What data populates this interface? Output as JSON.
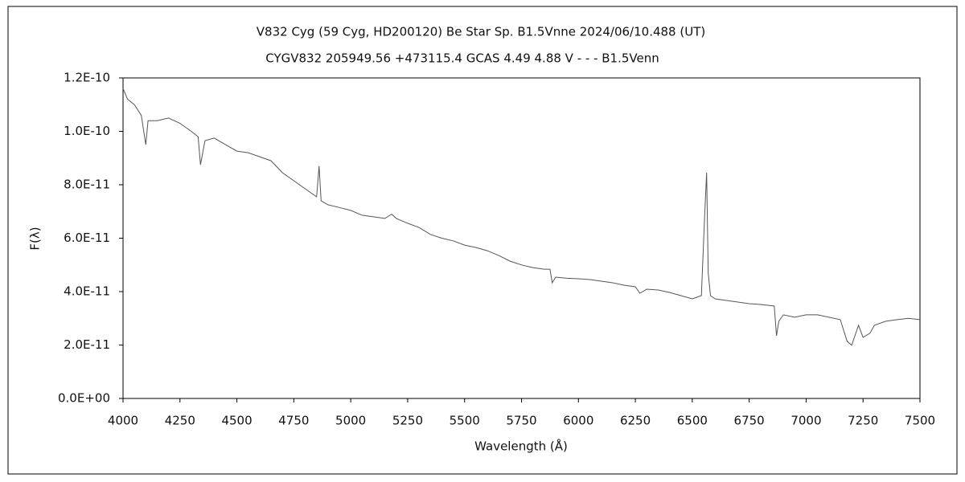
{
  "chart_data": {
    "type": "line",
    "title": "V832 Cyg (59 Cyg, HD200120)    Be Star    Sp. B1.5Vnne     2024/06/10.488 (UT)",
    "subtitle": "CYGV832 205949.56 +473115.4 GCAS 4.49 4.88 V - - - B1.5Venn",
    "x_label": "Wavelength (Å)",
    "y_label": "F(λ)",
    "xlim": [
      4000,
      7500
    ],
    "xticks": [
      4000,
      4250,
      4500,
      4750,
      5000,
      5250,
      5500,
      5750,
      6000,
      6250,
      6500,
      6750,
      7000,
      7250,
      7500
    ],
    "ylim": [
      0,
      1.2e-10
    ],
    "yticks": [
      {
        "value": 0,
        "label": "0.0E+00"
      },
      {
        "value": 2e-11,
        "label": "2.0E-11"
      },
      {
        "value": 4e-11,
        "label": "4.0E-11"
      },
      {
        "value": 6e-11,
        "label": "6.0E-11"
      },
      {
        "value": 8e-11,
        "label": "8.0E-11"
      },
      {
        "value": 1e-10,
        "label": "1.0E-10"
      },
      {
        "value": 1.2e-10,
        "label": "1.2E-10"
      }
    ],
    "grid": false,
    "series": [
      {
        "color": "#555555",
        "x": [
          4000,
          4020,
          4050,
          4080,
          4100,
          4110,
          4150,
          4200,
          4250,
          4300,
          4330,
          4340,
          4360,
          4400,
          4450,
          4500,
          4550,
          4600,
          4650,
          4700,
          4750,
          4800,
          4850,
          4861,
          4870,
          4900,
          4950,
          5000,
          5050,
          5100,
          5150,
          5180,
          5200,
          5250,
          5300,
          5350,
          5400,
          5450,
          5500,
          5550,
          5600,
          5650,
          5700,
          5750,
          5800,
          5850,
          5875,
          5885,
          5900,
          5950,
          6000,
          6050,
          6100,
          6150,
          6200,
          6250,
          6270,
          6300,
          6350,
          6400,
          6450,
          6500,
          6540,
          6555,
          6563,
          6570,
          6580,
          6600,
          6650,
          6700,
          6750,
          6800,
          6860,
          6870,
          6880,
          6900,
          6950,
          7000,
          7050,
          7100,
          7150,
          7180,
          7200,
          7230,
          7250,
          7280,
          7300,
          7350,
          7400,
          7450,
          7500
        ],
        "values": [
          1.16e-10,
          1.12e-10,
          1.1e-10,
          1.06e-10,
          9.5e-11,
          1.04e-10,
          1.04e-10,
          1.05e-10,
          1.03e-10,
          1e-10,
          9.8e-11,
          8.75e-11,
          9.65e-11,
          9.75e-11,
          9.5e-11,
          9.26e-11,
          9.2e-11,
          9.05e-11,
          8.9e-11,
          8.45e-11,
          8.15e-11,
          7.85e-11,
          7.55e-11,
          8.7e-11,
          7.4e-11,
          7.25e-11,
          7.15e-11,
          7.04e-11,
          6.86e-11,
          6.8e-11,
          6.74e-11,
          6.9e-11,
          6.74e-11,
          6.56e-11,
          6.4e-11,
          6.14e-11,
          6e-11,
          5.9e-11,
          5.74e-11,
          5.65e-11,
          5.53e-11,
          5.35e-11,
          5.14e-11,
          5e-11,
          4.9e-11,
          4.84e-11,
          4.84e-11,
          4.33e-11,
          4.54e-11,
          4.5e-11,
          4.48e-11,
          4.45e-11,
          4.39e-11,
          4.33e-11,
          4.24e-11,
          4.18e-11,
          3.94e-11,
          4.09e-11,
          4.06e-11,
          3.97e-11,
          3.85e-11,
          3.73e-11,
          3.85e-11,
          6.95e-11,
          8.45e-11,
          4.69e-11,
          3.85e-11,
          3.73e-11,
          3.67e-11,
          3.61e-11,
          3.55e-11,
          3.52e-11,
          3.46e-11,
          2.35e-11,
          2.89e-11,
          3.13e-11,
          3.04e-11,
          3.13e-11,
          3.13e-11,
          3.04e-11,
          2.95e-11,
          2.14e-11,
          1.99e-11,
          2.74e-11,
          2.29e-11,
          2.44e-11,
          2.74e-11,
          2.89e-11,
          2.95e-11,
          3e-11,
          2.95e-11
        ]
      }
    ]
  }
}
